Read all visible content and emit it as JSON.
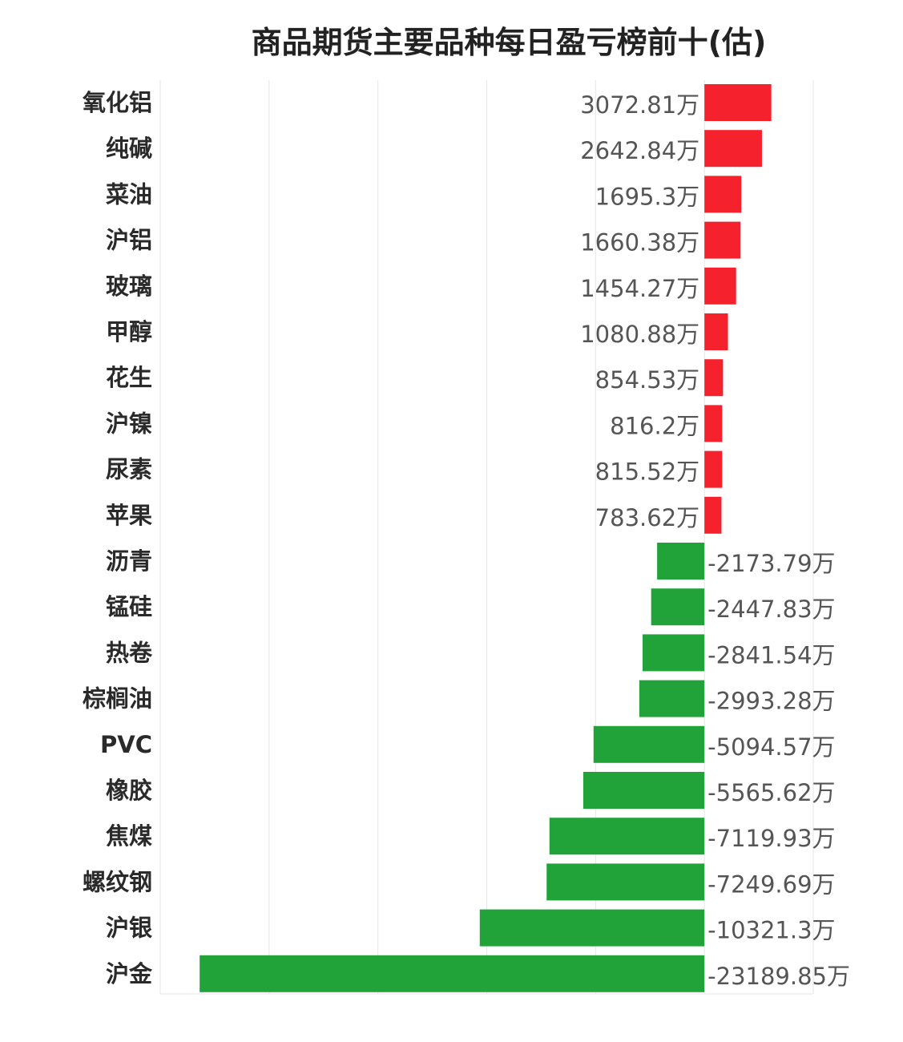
{
  "chart_data": {
    "type": "bar",
    "orientation": "horizontal",
    "title": "商品期货主要品种每日盈亏榜前十(估)",
    "unit": "万",
    "categories": [
      "氧化铝",
      "纯碱",
      "菜油",
      "沪铝",
      "玻璃",
      "甲醇",
      "花生",
      "沪镍",
      "尿素",
      "苹果",
      "沥青",
      "锰硅",
      "热卷",
      "棕榈油",
      "PVC",
      "橡胶",
      "焦煤",
      "螺纹钢",
      "沪银",
      "沪金"
    ],
    "values": [
      3072.81,
      2642.84,
      1695.3,
      1660.38,
      1454.27,
      1080.88,
      854.53,
      816.2,
      815.52,
      783.62,
      -2173.79,
      -2447.83,
      -2841.54,
      -2993.28,
      -5094.57,
      -5565.62,
      -7119.93,
      -7249.69,
      -10321.3,
      -23189.85
    ],
    "value_labels": [
      "3072.81万",
      "2642.84万",
      "1695.3万",
      "1660.38万",
      "1454.27万",
      "1080.88万",
      "854.53万",
      "816.2万",
      "815.52万",
      "783.62万",
      "-2173.79万",
      "-2447.83万",
      "-2841.54万",
      "-2993.28万",
      "-5094.57万",
      "-5565.62万",
      "-7119.93万",
      "-7249.69万",
      "-10321.3万",
      "-23189.85万"
    ],
    "xlim": [
      -25000,
      5000
    ],
    "grid": true,
    "colors": {
      "positive": "#f5222d",
      "negative": "#21a33a"
    }
  }
}
